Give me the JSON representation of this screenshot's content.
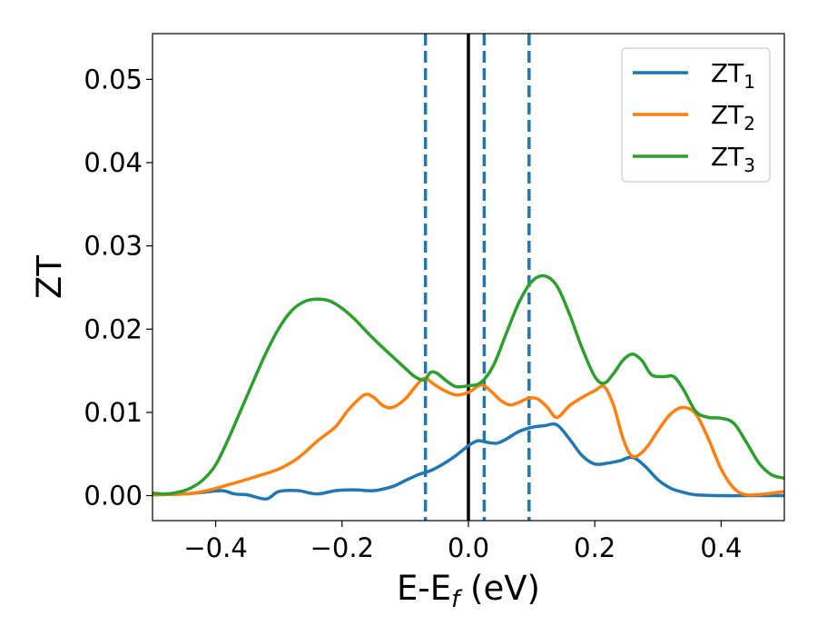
{
  "chart_data": {
    "type": "line",
    "xlabel": "E-E",
    "xlabel_sub": "f",
    "xlabel_unit": " (eV)",
    "ylabel": "ZT",
    "xlim": [
      -0.5,
      0.5
    ],
    "ylim": [
      -0.003,
      0.0555
    ],
    "xticks": [
      -0.4,
      -0.2,
      0.0,
      0.2,
      0.4
    ],
    "xtick_labels": [
      "−0.4",
      "−0.2",
      "0.0",
      "0.2",
      "0.4"
    ],
    "yticks": [
      0.0,
      0.01,
      0.02,
      0.03,
      0.04,
      0.05
    ],
    "ytick_labels": [
      "0.00",
      "0.01",
      "0.02",
      "0.03",
      "0.04",
      "0.05"
    ],
    "legend_position": "top-right",
    "grid": false,
    "vlines": [
      {
        "x": 0.0,
        "style": "solid",
        "color": "#000000"
      },
      {
        "x": -0.068,
        "style": "dashed",
        "color": "#1f77b4"
      },
      {
        "x": 0.025,
        "style": "dashed",
        "color": "#1f77b4"
      },
      {
        "x": 0.096,
        "style": "dashed",
        "color": "#1f77b4"
      }
    ],
    "series": [
      {
        "name": "ZT",
        "sub": "1",
        "color": "#1f77b4",
        "points": [
          [
            -0.5,
            0.0001
          ],
          [
            -0.45,
            0.0002
          ],
          [
            -0.42,
            0.0004
          ],
          [
            -0.39,
            0.0006
          ],
          [
            -0.37,
            0.0002
          ],
          [
            -0.35,
            0.0001
          ],
          [
            -0.32,
            -0.0004
          ],
          [
            -0.3,
            0.0005
          ],
          [
            -0.27,
            0.0006
          ],
          [
            -0.24,
            0.0002
          ],
          [
            -0.21,
            0.0006
          ],
          [
            -0.18,
            0.0007
          ],
          [
            -0.15,
            0.0006
          ],
          [
            -0.12,
            0.0011
          ],
          [
            -0.1,
            0.0018
          ],
          [
            -0.08,
            0.0025
          ],
          [
            -0.06,
            0.003
          ],
          [
            -0.04,
            0.0038
          ],
          [
            -0.02,
            0.0048
          ],
          [
            0.0,
            0.006
          ],
          [
            0.015,
            0.0066
          ],
          [
            0.03,
            0.0064
          ],
          [
            0.045,
            0.0063
          ],
          [
            0.06,
            0.0068
          ],
          [
            0.08,
            0.0077
          ],
          [
            0.1,
            0.0082
          ],
          [
            0.12,
            0.0084
          ],
          [
            0.14,
            0.0085
          ],
          [
            0.16,
            0.0068
          ],
          [
            0.18,
            0.0048
          ],
          [
            0.2,
            0.0038
          ],
          [
            0.22,
            0.0039
          ],
          [
            0.24,
            0.0042
          ],
          [
            0.26,
            0.0046
          ],
          [
            0.28,
            0.0035
          ],
          [
            0.3,
            0.0019
          ],
          [
            0.32,
            0.0009
          ],
          [
            0.34,
            0.0004
          ],
          [
            0.36,
            0.0001
          ],
          [
            0.4,
            0.0
          ],
          [
            0.45,
            0.0
          ],
          [
            0.5,
            0.0
          ]
        ]
      },
      {
        "name": "ZT",
        "sub": "2",
        "color": "#ff7f0e",
        "points": [
          [
            -0.5,
            0.0001
          ],
          [
            -0.45,
            0.0002
          ],
          [
            -0.42,
            0.0005
          ],
          [
            -0.38,
            0.0013
          ],
          [
            -0.34,
            0.0022
          ],
          [
            -0.3,
            0.0032
          ],
          [
            -0.27,
            0.0045
          ],
          [
            -0.24,
            0.0065
          ],
          [
            -0.21,
            0.0083
          ],
          [
            -0.19,
            0.0103
          ],
          [
            -0.165,
            0.0121
          ],
          [
            -0.15,
            0.0118
          ],
          [
            -0.135,
            0.0108
          ],
          [
            -0.12,
            0.0106
          ],
          [
            -0.1,
            0.0116
          ],
          [
            -0.085,
            0.013
          ],
          [
            -0.07,
            0.0141
          ],
          [
            -0.055,
            0.0134
          ],
          [
            -0.04,
            0.0127
          ],
          [
            -0.02,
            0.0121
          ],
          [
            0.0,
            0.0124
          ],
          [
            0.02,
            0.0133
          ],
          [
            0.035,
            0.0126
          ],
          [
            0.05,
            0.0115
          ],
          [
            0.065,
            0.0109
          ],
          [
            0.08,
            0.0112
          ],
          [
            0.095,
            0.0117
          ],
          [
            0.11,
            0.0116
          ],
          [
            0.125,
            0.0106
          ],
          [
            0.14,
            0.0094
          ],
          [
            0.16,
            0.0108
          ],
          [
            0.18,
            0.0118
          ],
          [
            0.2,
            0.0126
          ],
          [
            0.215,
            0.0131
          ],
          [
            0.23,
            0.0108
          ],
          [
            0.245,
            0.0068
          ],
          [
            0.26,
            0.0047
          ],
          [
            0.28,
            0.0056
          ],
          [
            0.3,
            0.0078
          ],
          [
            0.32,
            0.0098
          ],
          [
            0.34,
            0.0106
          ],
          [
            0.36,
            0.0098
          ],
          [
            0.38,
            0.0068
          ],
          [
            0.4,
            0.0032
          ],
          [
            0.42,
            0.0009
          ],
          [
            0.44,
            0.0001
          ],
          [
            0.47,
            0.0002
          ],
          [
            0.5,
            0.0005
          ]
        ]
      },
      {
        "name": "ZT",
        "sub": "3",
        "color": "#2ca02c",
        "points": [
          [
            -0.5,
            0.0003
          ],
          [
            -0.48,
            0.0002
          ],
          [
            -0.46,
            0.0004
          ],
          [
            -0.44,
            0.0009
          ],
          [
            -0.42,
            0.0019
          ],
          [
            -0.4,
            0.0037
          ],
          [
            -0.38,
            0.0068
          ],
          [
            -0.36,
            0.0103
          ],
          [
            -0.34,
            0.0138
          ],
          [
            -0.32,
            0.0172
          ],
          [
            -0.3,
            0.0201
          ],
          [
            -0.28,
            0.0222
          ],
          [
            -0.26,
            0.0233
          ],
          [
            -0.24,
            0.0236
          ],
          [
            -0.22,
            0.0234
          ],
          [
            -0.2,
            0.0225
          ],
          [
            -0.18,
            0.0212
          ],
          [
            -0.16,
            0.0196
          ],
          [
            -0.14,
            0.0181
          ],
          [
            -0.12,
            0.0167
          ],
          [
            -0.1,
            0.0153
          ],
          [
            -0.085,
            0.0143
          ],
          [
            -0.07,
            0.0139
          ],
          [
            -0.06,
            0.0148
          ],
          [
            -0.05,
            0.0147
          ],
          [
            -0.035,
            0.0138
          ],
          [
            -0.02,
            0.0131
          ],
          [
            0.0,
            0.0132
          ],
          [
            0.02,
            0.0136
          ],
          [
            0.04,
            0.0157
          ],
          [
            0.06,
            0.0195
          ],
          [
            0.08,
            0.0232
          ],
          [
            0.1,
            0.0257
          ],
          [
            0.12,
            0.0264
          ],
          [
            0.14,
            0.0252
          ],
          [
            0.16,
            0.0218
          ],
          [
            0.18,
            0.0177
          ],
          [
            0.2,
            0.0143
          ],
          [
            0.215,
            0.0135
          ],
          [
            0.23,
            0.0147
          ],
          [
            0.245,
            0.0163
          ],
          [
            0.26,
            0.017
          ],
          [
            0.275,
            0.0162
          ],
          [
            0.29,
            0.0145
          ],
          [
            0.31,
            0.0143
          ],
          [
            0.325,
            0.0143
          ],
          [
            0.34,
            0.0128
          ],
          [
            0.36,
            0.0101
          ],
          [
            0.38,
            0.0094
          ],
          [
            0.4,
            0.0093
          ],
          [
            0.42,
            0.0087
          ],
          [
            0.44,
            0.0064
          ],
          [
            0.46,
            0.0039
          ],
          [
            0.48,
            0.0025
          ],
          [
            0.5,
            0.0021
          ]
        ]
      }
    ]
  }
}
